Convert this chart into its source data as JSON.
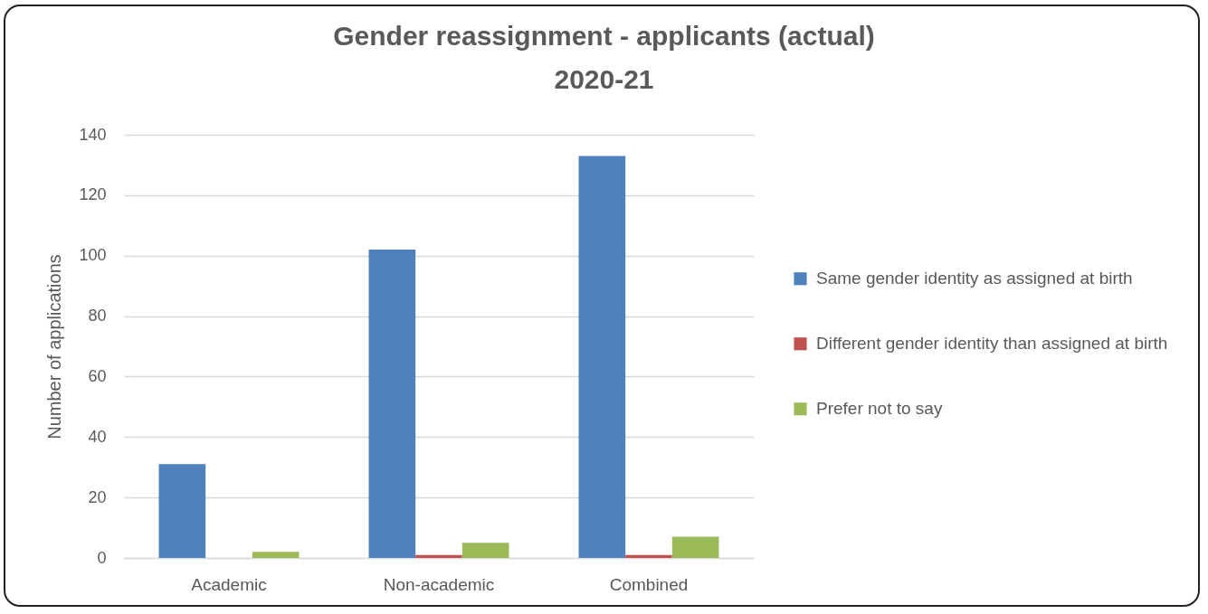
{
  "chart_data": {
    "type": "bar",
    "title": "Gender reassignment - applicants (actual) 2020-21",
    "categories": [
      "Academic",
      "Non-academic",
      "Combined"
    ],
    "series": [
      {
        "name": "Same gender identity as assigned at birth",
        "color": "#4f81bd",
        "values": [
          31,
          102,
          133
        ]
      },
      {
        "name": "Different gender identity than assigned at birth",
        "color": "#c0504d",
        "values": [
          0,
          1,
          1
        ]
      },
      {
        "name": "Prefer not to say",
        "color": "#9bbb59",
        "values": [
          2,
          5,
          7
        ]
      }
    ],
    "ylabel": "Number of applications",
    "ylim": [
      0,
      140
    ],
    "yticks": [
      0,
      20,
      40,
      60,
      80,
      100,
      120,
      140
    ],
    "grid": "y",
    "legend": "right"
  }
}
